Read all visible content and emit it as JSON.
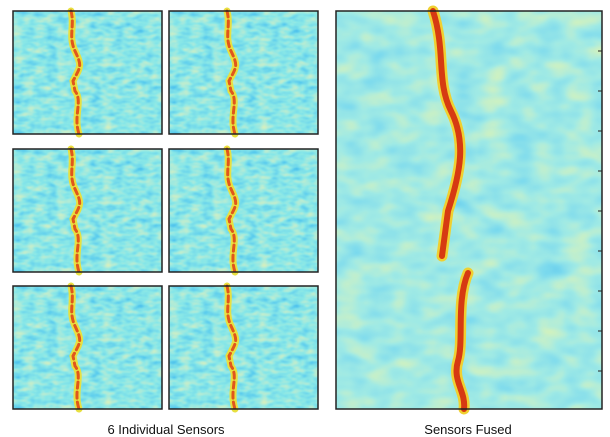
{
  "captions": {
    "individual": "6 Individual Sensors",
    "fused": "Sensors Fused"
  }
}
